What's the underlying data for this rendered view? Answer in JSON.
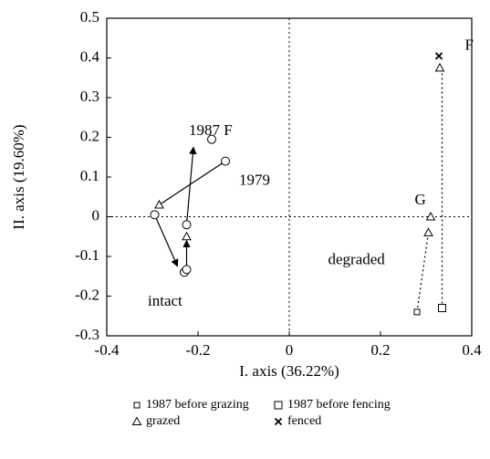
{
  "chart_data": {
    "type": "scatter",
    "xlabel": "I. axis (36.22%)",
    "ylabel": "II. axis (19.60%)",
    "xlim": [
      -0.4,
      0.4
    ],
    "xticks": [
      -0.4,
      -0.2,
      0,
      0.2,
      0.4
    ],
    "ylim": [
      -0.3,
      0.5
    ],
    "yticks": [
      -0.3,
      -0.2,
      -0.1,
      0,
      0.1,
      0.2,
      0.3,
      0.4,
      0.5
    ],
    "series": [
      {
        "marker": "circle",
        "x": [
          -0.17,
          -0.14,
          -0.295,
          -0.225,
          -0.23,
          -0.225
        ],
        "y": [
          0.195,
          0.14,
          0.005,
          -0.02,
          -0.14,
          -0.133
        ]
      },
      {
        "name": "1987 before grazing",
        "marker": "square-small",
        "x": [
          0.28
        ],
        "y": [
          -0.24
        ]
      },
      {
        "name": "1987 before fencing",
        "marker": "square",
        "x": [
          0.335
        ],
        "y": [
          -0.23
        ]
      },
      {
        "name": "grazed",
        "marker": "triangle",
        "x": [
          -0.285,
          -0.225,
          0.305,
          0.31,
          0.33
        ],
        "y": [
          0.03,
          -0.05,
          -0.04,
          0,
          0.375
        ]
      },
      {
        "name": "fenced",
        "marker": "cross",
        "x": [
          0.328
        ],
        "y": [
          0.405
        ]
      }
    ],
    "segments": [
      {
        "x": [
          -0.285,
          -0.14
        ],
        "y": [
          0.03,
          0.14
        ],
        "style": "solid"
      },
      {
        "x": [
          -0.295,
          -0.245
        ],
        "y": [
          0.005,
          -0.125
        ],
        "style": "arrow"
      },
      {
        "x": [
          -0.225,
          -0.225
        ],
        "y": [
          -0.13,
          -0.06
        ],
        "style": "arrow"
      },
      {
        "x": [
          -0.225,
          -0.21
        ],
        "y": [
          -0.02,
          0.175
        ],
        "style": "arrow"
      },
      {
        "x": [
          0.28,
          0.305
        ],
        "y": [
          -0.24,
          -0.04
        ],
        "style": "dotted"
      },
      {
        "x": [
          0.335,
          0.335
        ],
        "y": [
          -0.23,
          0.375
        ],
        "style": "dotted"
      }
    ],
    "annotations": [
      {
        "text": "1987 F",
        "x": -0.22,
        "y": 0.215
      },
      {
        "text": "1979",
        "x": -0.11,
        "y": 0.09
      },
      {
        "text": "G",
        "x": 0.275,
        "y": 0.04
      },
      {
        "text": "F",
        "x": 0.385,
        "y": 0.43
      },
      {
        "text": "intact",
        "x": -0.31,
        "y": -0.215
      },
      {
        "text": "degraded",
        "x": 0.085,
        "y": -0.11
      }
    ]
  }
}
